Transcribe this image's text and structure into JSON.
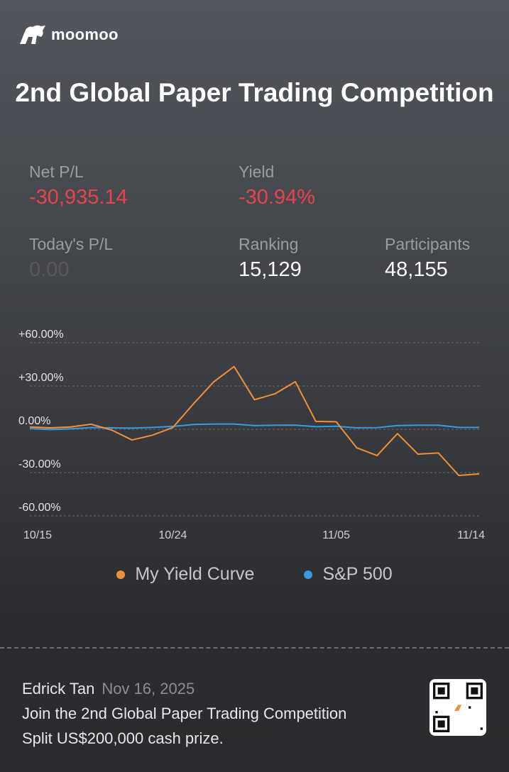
{
  "brand": {
    "logo_text": "moomoo"
  },
  "title": "2nd Global Paper Trading Competition",
  "stats": {
    "net_pl": {
      "label": "Net P/L",
      "value": "-30,935.14"
    },
    "yield": {
      "label": "Yield",
      "value": "-30.94%"
    },
    "todays_pl": {
      "label": "Today's P/L",
      "value": "0.00"
    },
    "ranking": {
      "label": "Ranking",
      "value": "15,129"
    },
    "participants": {
      "label": "Participants",
      "value": "48,155"
    }
  },
  "colors": {
    "negative": "#e8424f",
    "my_yield": "#f0903a",
    "sp500": "#3a9be0"
  },
  "chart_data": {
    "type": "line",
    "x": [
      "10/15",
      "10/16",
      "10/17",
      "10/20",
      "10/21",
      "10/22",
      "10/23",
      "10/24",
      "10/27",
      "10/28",
      "10/29",
      "10/30",
      "10/31",
      "11/03",
      "11/04",
      "11/05",
      "11/06",
      "11/07",
      "11/10",
      "11/11",
      "11/12",
      "11/13",
      "11/14"
    ],
    "x_ticks": [
      "10/15",
      "10/24",
      "11/05",
      "11/14"
    ],
    "y_ticks": [
      "+60.00%",
      "+30.00%",
      "0.00%",
      "-30.00%",
      "-60.00%"
    ],
    "y_tick_values": [
      60,
      30,
      0,
      -30,
      -60
    ],
    "ylim": [
      -60,
      60
    ],
    "grid": true,
    "legend_position": "bottom",
    "series": [
      {
        "name": "My Yield Curve",
        "values": [
          1.6,
          1.0,
          1.6,
          3.5,
          -0.5,
          -7.4,
          -4.1,
          1.2,
          17.5,
          32.8,
          43.5,
          20.5,
          24.6,
          33.0,
          5.5,
          5.2,
          -12.8,
          -18.2,
          -3.0,
          -17.2,
          -16.4,
          -32.0,
          -30.94
        ]
      },
      {
        "name": "S&P 500",
        "values": [
          0.5,
          -0.2,
          0.3,
          1.2,
          1.0,
          0.8,
          1.3,
          2.0,
          3.3,
          3.6,
          3.6,
          2.6,
          2.8,
          2.9,
          1.8,
          2.1,
          1.0,
          1.1,
          2.6,
          2.8,
          2.8,
          1.3,
          1.3
        ]
      }
    ]
  },
  "footer": {
    "user": "Edrick Tan",
    "date": "Nov 16, 2025",
    "line1": "Join the 2nd Global Paper Trading Competition",
    "line2": "Split US$200,000 cash prize."
  }
}
